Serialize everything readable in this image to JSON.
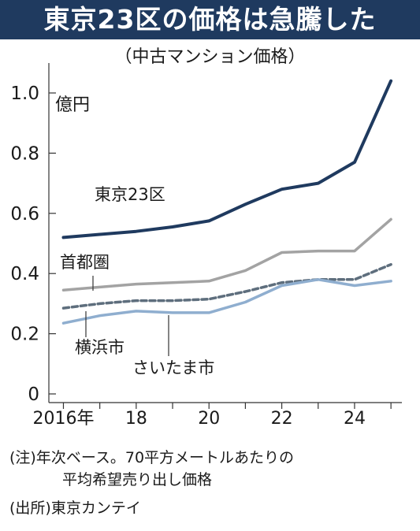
{
  "title": "東京23区の価格は急騰した",
  "subtitle": "（中古マンション価格）",
  "notes": {
    "note1_line1": "(注)年次ベース。70平方メートルあたりの",
    "note1_line2": "平均希望売り出し価格",
    "source": "(出所)東京カンテイ"
  },
  "colors": {
    "title_bg": "#1f3a5f",
    "tokyo23": "#1f3a5f",
    "shutoken": "#a3a3a3",
    "yokohama": "#5e6e7d",
    "saitama": "#8faecf"
  },
  "chart_data": {
    "type": "line",
    "ylabel": "億円",
    "ylim": [
      0,
      1.05
    ],
    "yticks": [
      0,
      0.2,
      0.4,
      0.6,
      0.8,
      1.0
    ],
    "ytick_labels": [
      "0",
      "0.2",
      "0.4",
      "0.6",
      "0.8",
      "1.0"
    ],
    "xlim": [
      2015.6,
      2025.3
    ],
    "xticks": [
      2016,
      2018,
      2020,
      2022,
      2024
    ],
    "xtick_labels": [
      "2016年",
      "18",
      "20",
      "22",
      "24"
    ],
    "x": [
      2016,
      2017,
      2018,
      2019,
      2020,
      2021,
      2022,
      2023,
      2024,
      2025
    ],
    "series": [
      {
        "name": "東京23区",
        "values": [
          0.52,
          0.53,
          0.54,
          0.555,
          0.575,
          0.63,
          0.68,
          0.7,
          0.77,
          1.04
        ]
      },
      {
        "name": "首都圏",
        "values": [
          0.345,
          0.355,
          0.365,
          0.37,
          0.375,
          0.41,
          0.47,
          0.475,
          0.475,
          0.58
        ]
      },
      {
        "name": "横浜市",
        "values": [
          0.285,
          0.3,
          0.31,
          0.31,
          0.315,
          0.34,
          0.37,
          0.38,
          0.38,
          0.43
        ]
      },
      {
        "name": "さいたま市",
        "values": [
          0.235,
          0.26,
          0.275,
          0.27,
          0.27,
          0.305,
          0.36,
          0.38,
          0.36,
          0.375
        ]
      }
    ]
  }
}
